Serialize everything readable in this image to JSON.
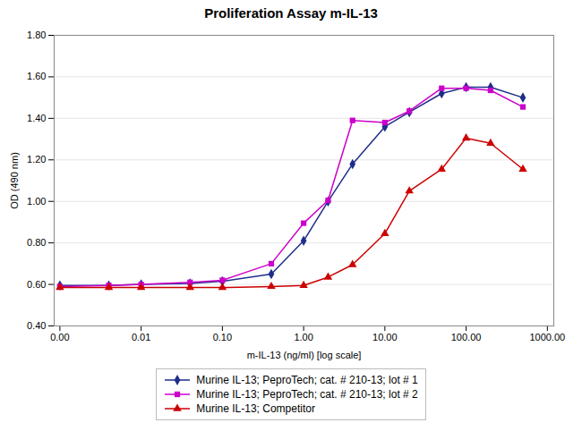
{
  "chart_data": {
    "type": "line",
    "title": "Proliferation Assay m-IL-13",
    "xlabel": "m-IL-13 (ng/ml) [log scale]",
    "ylabel": "OD (490 nm)",
    "log": "x",
    "grid": true,
    "legend": "bottom",
    "x": [
      0.001,
      0.004,
      0.01,
      0.04,
      0.1,
      0.4,
      1.0,
      2.0,
      4.0,
      10.0,
      20.0,
      50.0,
      100.0,
      200.0,
      500.0
    ],
    "series": [
      {
        "name": "Murine IL-13; PeproTech; cat. # 210-13; lot # 1",
        "color": "#1F2D8A",
        "marker": "diamond",
        "values": [
          0.595,
          0.595,
          0.6,
          0.605,
          0.615,
          0.65,
          0.81,
          1.0,
          1.18,
          1.36,
          1.43,
          1.52,
          1.55,
          1.55,
          1.5
        ]
      },
      {
        "name": "Murine IL-13; PeproTech; cat. # 210-13; lot # 2",
        "color": "#CC00CC",
        "marker": "square",
        "values": [
          0.59,
          0.595,
          0.6,
          0.61,
          0.62,
          0.7,
          0.895,
          1.005,
          1.39,
          1.38,
          1.435,
          1.545,
          1.545,
          1.535,
          1.455
        ]
      },
      {
        "name": "Murine IL-13; Competitor",
        "color": "#CC0000",
        "marker": "triangle",
        "values": [
          0.585,
          0.585,
          0.585,
          0.585,
          0.585,
          0.59,
          0.595,
          0.635,
          0.695,
          0.845,
          1.05,
          1.155,
          1.305,
          1.28,
          1.155
        ]
      }
    ],
    "xlim": [
      0.00085,
      1200.0
    ],
    "xticks": [
      {
        "value": 0.001,
        "label": "0.00"
      },
      {
        "value": 0.01,
        "label": "0.01"
      },
      {
        "value": 0.1,
        "label": "0.10"
      },
      {
        "value": 1.0,
        "label": "1.00"
      },
      {
        "value": 10.0,
        "label": "10.00"
      },
      {
        "value": 100.0,
        "label": "100.00"
      },
      {
        "value": 1000.0,
        "label": "1000.00"
      }
    ],
    "ylim": [
      0.4,
      1.8
    ],
    "yticks": [
      {
        "value": 0.4,
        "label": "0.40"
      },
      {
        "value": 0.6,
        "label": "0.60"
      },
      {
        "value": 0.8,
        "label": "0.80"
      },
      {
        "value": 1.0,
        "label": "1.00"
      },
      {
        "value": 1.2,
        "label": "1.20"
      },
      {
        "value": 1.4,
        "label": "1.40"
      },
      {
        "value": 1.6,
        "label": "1.60"
      },
      {
        "value": 1.8,
        "label": "1.80"
      }
    ]
  }
}
